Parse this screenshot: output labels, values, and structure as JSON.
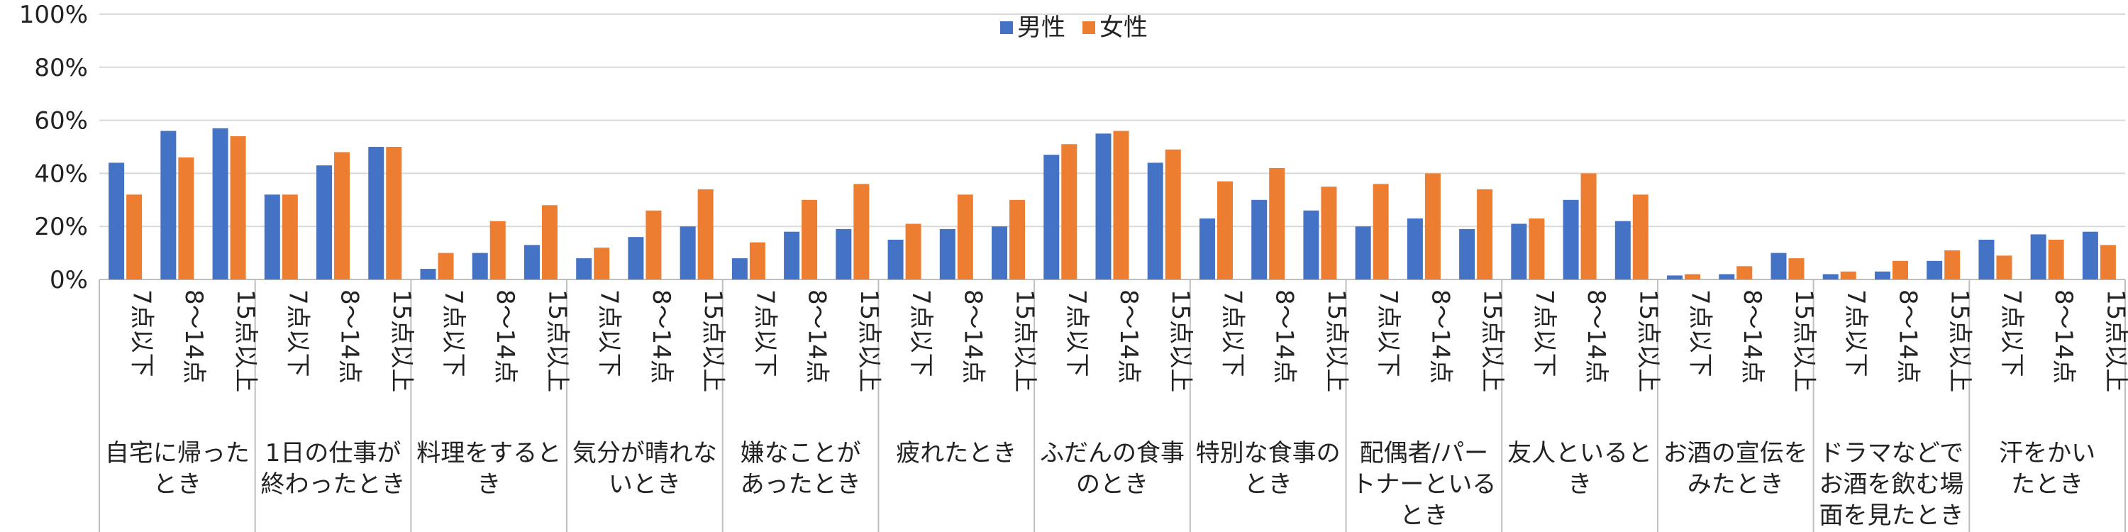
{
  "chart_data": {
    "type": "bar",
    "ylim": [
      0,
      100
    ],
    "y_ticks": [
      "0%",
      "20%",
      "40%",
      "60%",
      "80%",
      "100%"
    ],
    "y_tick_values": [
      0,
      20,
      40,
      60,
      80,
      100
    ],
    "grid": true,
    "legend_position": "top-center",
    "subcategories": [
      "7点以下",
      "8～14点",
      "15点以上"
    ],
    "categories": [
      {
        "label": [
          "自宅に帰った",
          "とき"
        ]
      },
      {
        "label": [
          "1日の仕事が",
          "終わったとき"
        ]
      },
      {
        "label": [
          "料理をすると",
          "き"
        ]
      },
      {
        "label": [
          "気分が晴れな",
          "いとき"
        ]
      },
      {
        "label": [
          "嫌なことが",
          "あったとき"
        ]
      },
      {
        "label": [
          "疲れたとき"
        ]
      },
      {
        "label": [
          "ふだんの食事",
          "のとき"
        ]
      },
      {
        "label": [
          "特別な食事の",
          "とき"
        ]
      },
      {
        "label": [
          "配偶者/パー",
          "トナーといる",
          "とき"
        ]
      },
      {
        "label": [
          "友人といると",
          "き"
        ]
      },
      {
        "label": [
          "お酒の宣伝を",
          "みたとき"
        ]
      },
      {
        "label": [
          "ドラマなどで",
          "お酒を飲む場",
          "面を見たとき"
        ]
      },
      {
        "label": [
          "汗をかい",
          "たとき"
        ]
      }
    ],
    "series": [
      {
        "name": "男性",
        "color": "#4472C4",
        "values": [
          [
            44,
            56,
            57
          ],
          [
            32,
            43,
            50
          ],
          [
            4,
            10,
            13
          ],
          [
            8,
            16,
            20
          ],
          [
            8,
            18,
            19
          ],
          [
            15,
            19,
            20
          ],
          [
            47,
            55,
            44
          ],
          [
            23,
            30,
            26
          ],
          [
            20,
            23,
            19
          ],
          [
            21,
            30,
            22
          ],
          [
            1.5,
            2,
            10
          ],
          [
            2,
            3,
            7
          ],
          [
            15,
            17,
            18
          ]
        ]
      },
      {
        "name": "女性",
        "color": "#ED7D31",
        "values": [
          [
            32,
            46,
            54
          ],
          [
            32,
            48,
            50
          ],
          [
            10,
            22,
            28
          ],
          [
            12,
            26,
            34
          ],
          [
            14,
            30,
            36
          ],
          [
            21,
            32,
            30
          ],
          [
            51,
            56,
            49
          ],
          [
            37,
            42,
            35
          ],
          [
            36,
            40,
            34
          ],
          [
            23,
            40,
            32
          ],
          [
            2,
            5,
            8
          ],
          [
            3,
            7,
            11
          ],
          [
            9,
            15,
            13
          ]
        ]
      }
    ]
  }
}
